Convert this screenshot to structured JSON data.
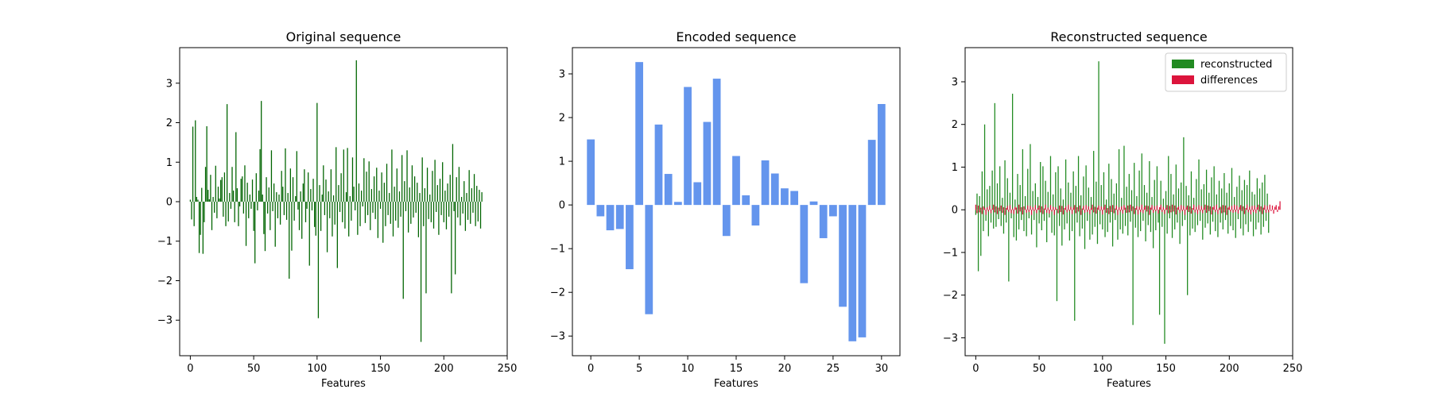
{
  "colors": {
    "original": "#006400",
    "encoded": "#6495ED",
    "reconstructed": "#228B22",
    "differences": "#DC143C"
  },
  "chart_data": [
    {
      "type": "bar",
      "title": "Original sequence",
      "xlabel": "Features",
      "ylabel": "",
      "xlim": [
        -8.4,
        250
      ],
      "ylim": [
        -3.9,
        3.9
      ],
      "x_ticks": [
        0,
        50,
        100,
        150,
        200,
        250
      ],
      "y_ticks": [
        -3,
        -2,
        -1,
        0,
        1,
        2,
        3
      ],
      "x": "0..239 (one bar per feature)",
      "series": [
        {
          "values": [
            0.05,
            -0.45,
            1.9,
            -0.62,
            2.06,
            0.12,
            0.05,
            -1.3,
            -0.84,
            0.35,
            -1.32,
            -0.52,
            0.88,
            1.91,
            0.3,
            0.06,
            0.68,
            -0.72,
            0.12,
            -0.28,
            0.91,
            -0.42,
            0.38,
            0.08,
            0.55,
            0.62,
            -0.38,
            0.74,
            -0.62,
            2.47,
            -0.5,
            0.22,
            -0.18,
            0.88,
            0.28,
            -0.52,
            1.76,
            0.34,
            -0.62,
            -0.12,
            0.58,
            0.64,
            -0.3,
            0.92,
            -1.12,
            0.48,
            -0.42,
            0.18,
            -0.18,
            0.56,
            -0.74,
            -1.56,
            0.72,
            -0.22,
            0.28,
            1.33,
            2.55,
            0.18,
            -0.82,
            -1.25,
            0.62,
            -0.3,
            0.36,
            -0.72,
            1.3,
            -0.24,
            0.46,
            -1.14,
            0.24,
            -0.42,
            0.18,
            -0.58,
            0.78,
            0.38,
            -0.34,
            1.35,
            -0.46,
            0.22,
            -1.95,
            0.84,
            -1.24,
            0.62,
            -0.48,
            0.14,
            1.28,
            -0.2,
            -0.72,
            0.26,
            -0.94,
            0.46,
            0.82,
            -0.52,
            -0.18,
            0.74,
            -1.62,
            0.32,
            -0.22,
            0.58,
            -0.64,
            -0.86,
            2.5,
            -2.95,
            0.42,
            -0.74,
            0.18,
            0.92,
            -0.34,
            0.56,
            -1.28,
            0.26,
            -0.42,
            0.82,
            -0.88,
            0.16,
            -0.58,
            1.38,
            -1.68,
            0.42,
            -0.26,
            0.72,
            -0.52,
            1.32,
            -0.68,
            0.24,
            1.36,
            -0.88,
            0.14,
            -0.48,
            1.12,
            0.38,
            -0.22,
            3.58,
            -0.84,
            0.46,
            -0.62,
            0.28,
            -0.12,
            1.1,
            -0.54,
            0.76,
            -0.34,
            1.02,
            -0.72,
            0.32,
            -0.28,
            0.64,
            -0.44,
            0.86,
            -0.92,
            0.28,
            -0.18,
            0.74,
            -1.04,
            0.48,
            -0.62,
            0.96,
            -0.34,
            0.22,
            -0.56,
            1.32,
            -0.88,
            0.38,
            -0.48,
            0.84,
            -0.66,
            0.26,
            -0.38,
            1.18,
            -2.46,
            0.52,
            -0.24,
            1.3,
            -0.78,
            0.36,
            -0.56,
            0.92,
            -0.4,
            0.64,
            -0.28,
            0.48,
            -0.9,
            0.22,
            -3.55,
            1.12,
            -0.62,
            0.34,
            -2.32,
            0.86,
            -0.44,
            0.18,
            -0.52,
            0.78,
            -0.68,
            1.06,
            -0.26,
            0.42,
            -0.84,
            0.58,
            -0.34,
            1.0,
            -0.52,
            0.28,
            -0.7,
            0.46,
            -0.38,
            0.68,
            -2.32,
            1.46,
            -0.24,
            -1.84,
            0.62,
            -0.4,
            0.88,
            -0.6,
            0.12,
            -0.3,
            0.52,
            -0.74,
            0.22,
            -0.46,
            0.8,
            -0.56,
            0.34,
            -0.28,
            0.7,
            -0.62,
            0.4,
            -0.5,
            0.3,
            -0.68,
            0.24
          ]
        }
      ]
    },
    {
      "type": "bar",
      "title": "Encoded sequence",
      "xlabel": "Features",
      "ylabel": "",
      "xlim": [
        -1.9,
        31.9
      ],
      "ylim": [
        -3.45,
        3.6
      ],
      "x_ticks": [
        0,
        5,
        10,
        15,
        20,
        25,
        30
      ],
      "y_ticks": [
        -3,
        -2,
        -1,
        0,
        1,
        2,
        3
      ],
      "categories": [
        0,
        1,
        2,
        3,
        4,
        5,
        6,
        7,
        8,
        9,
        10,
        11,
        12,
        13,
        14,
        15,
        16,
        17,
        18,
        19,
        20,
        21,
        22,
        23,
        24,
        25,
        26,
        27,
        28,
        29,
        30
      ],
      "series": [
        {
          "values": [
            1.5,
            -0.26,
            -0.58,
            -0.55,
            -1.47,
            3.27,
            -2.5,
            1.84,
            0.71,
            0.07,
            2.7,
            0.52,
            1.9,
            2.89,
            -0.71,
            1.12,
            0.22,
            -0.47,
            1.02,
            0.72,
            0.38,
            0.32,
            -1.79,
            0.08,
            -0.76,
            -0.26,
            -2.33,
            -3.12,
            -3.03,
            1.49,
            2.31
          ]
        }
      ]
    },
    {
      "type": "bar",
      "title": "Reconstructed sequence",
      "xlabel": "Features",
      "ylabel": "",
      "xlim": [
        -8.4,
        250
      ],
      "ylim": [
        -3.42,
        3.8
      ],
      "x_ticks": [
        0,
        50,
        100,
        150,
        200,
        250
      ],
      "y_ticks": [
        -3,
        -2,
        -1,
        0,
        1,
        2,
        3
      ],
      "legend_position": "upper right",
      "series": [
        {
          "name": "reconstructed",
          "values": [
            -0.12,
            0.38,
            -1.44,
            0.32,
            -1.08,
            0.9,
            -0.5,
            2.0,
            -0.26,
            0.48,
            -0.62,
            0.56,
            -0.3,
            0.92,
            -0.44,
            2.5,
            -0.4,
            0.62,
            -0.22,
            1.02,
            -0.38,
            0.28,
            -0.56,
            1.16,
            -0.3,
            0.74,
            -1.68,
            0.4,
            -0.2,
            2.72,
            -0.64,
            0.24,
            -0.72,
            0.84,
            -0.46,
            0.58,
            -0.24,
            1.42,
            -0.5,
            0.32,
            -0.62,
            0.96,
            -0.2,
            1.54,
            -0.58,
            0.44,
            -0.24,
            0.62,
            -0.88,
            0.3,
            -0.32,
            1.12,
            -0.48,
            1.02,
            -0.26,
            0.68,
            -0.76,
            0.42,
            -0.18,
            1.26,
            -0.54,
            0.36,
            -0.6,
            0.88,
            -2.14,
            1.02,
            -0.38,
            0.5,
            -0.84,
            0.24,
            -0.46,
            1.18,
            -0.32,
            0.64,
            -0.72,
            0.4,
            -0.5,
            0.9,
            -2.6,
            0.56,
            -0.3,
            1.26,
            -0.62,
            0.34,
            -0.44,
            0.78,
            -0.92,
            1.04,
            -0.26,
            0.52,
            -0.7,
            0.3,
            -0.58,
            1.38,
            -0.4,
            0.66,
            -0.8,
            3.48,
            -0.34,
            0.58,
            -0.46,
            0.88,
            -0.64,
            0.24,
            -0.52,
            1.08,
            -0.3,
            0.72,
            -0.86,
            0.38,
            -0.24,
            0.62,
            -0.7,
            1.42,
            -0.46,
            0.28,
            -0.56,
            1.5,
            -0.38,
            0.54,
            -0.6,
            0.84,
            -0.28,
            0.46,
            -2.7,
            1.1,
            -0.42,
            0.32,
            -0.64,
            0.92,
            -0.5,
            1.32,
            -0.26,
            0.58,
            -0.74,
            0.4,
            -0.36,
            1.14,
            -0.52,
            0.3,
            -0.9,
            0.7,
            -0.48,
            1.02,
            -0.3,
            -2.46,
            0.68,
            -0.4,
            0.26,
            -3.14,
            0.44,
            -0.56,
            1.26,
            -0.2,
            0.84,
            -0.66,
            0.36,
            -0.46,
            1.06,
            -0.3,
            0.5,
            -0.8,
            0.64,
            -0.38,
            1.7,
            -0.24,
            0.56,
            -2.0,
            0.34,
            -0.6,
            0.9,
            -0.44,
            0.28,
            -0.52,
            0.72,
            -0.36,
            1.18,
            -0.26,
            0.48,
            -0.7,
            0.6,
            -0.42,
            0.94,
            -0.32,
            0.4,
            -0.58,
            0.76,
            -0.28,
            1.02,
            -0.5,
            0.36,
            -0.64,
            0.68,
            -0.3,
            0.5,
            -0.46,
            0.86,
            -0.24,
            0.4,
            -0.56,
            0.62,
            -0.38,
            0.98,
            -0.48,
            0.3,
            -0.66,
            0.54,
            -0.22,
            0.8,
            -0.44,
            0.46,
            -0.6,
            0.7,
            -0.34,
            0.58,
            -0.52,
            0.92,
            -0.28,
            0.42,
            -0.62,
            0.36,
            -0.46,
            0.74,
            -0.3,
            0.5,
            -0.58,
            0.64,
            -0.4,
            0.82,
            -0.26,
            0.38,
            -0.54
          ]
        },
        {
          "name": "differences",
          "values": [
            0.12,
            -0.08,
            0.1,
            -0.06,
            0.05,
            -0.1,
            0.08,
            0.04,
            -0.12,
            0.06,
            -0.04,
            0.1,
            -0.08,
            0.03,
            0.12,
            -0.06,
            0.08,
            -0.1,
            0.05,
            -0.03,
            0.1,
            -0.07,
            0.06,
            -0.12,
            0.04,
            0.09,
            -0.05,
            0.11,
            -0.08,
            0.03,
            -0.1,
            0.07,
            0.05,
            -0.09,
            0.12,
            -0.04,
            0.06,
            -0.11,
            0.08,
            0.02,
            -0.07,
            0.1,
            -0.05,
            0.09,
            -0.12,
            0.06,
            -0.03,
            0.11,
            -0.08,
            0.04,
            0.1,
            -0.06,
            0.08,
            -0.1,
            0.03,
            0.12,
            -0.07,
            0.05,
            -0.09,
            0.11,
            -0.04,
            0.07,
            -0.12,
            0.06,
            0.02,
            -0.08,
            0.1,
            -0.05,
            0.09,
            -0.11,
            0.04,
            0.08,
            -0.06,
            0.12,
            -0.03,
            0.07,
            -0.1,
            0.05,
            0.11,
            -0.08,
            0.06,
            -0.04,
            0.1,
            -0.12,
            0.03,
            0.09,
            -0.07,
            0.11,
            -0.05,
            0.08,
            -0.1,
            0.04,
            0.12,
            -0.06,
            0.07,
            -0.09,
            0.05,
            0.1,
            -0.03,
            0.08,
            -0.11,
            0.06,
            0.12,
            -0.07,
            0.04,
            -0.1,
            0.09,
            -0.05,
            0.11,
            -0.08,
            0.03,
            0.1,
            -0.12,
            0.06,
            -0.04,
            0.08,
            -0.09,
            0.11,
            0.05,
            -0.07,
            0.1,
            -0.06,
            0.12,
            -0.03,
            0.08,
            -0.1,
            0.04,
            0.09,
            -0.11,
            0.07,
            -0.05,
            0.12,
            -0.08,
            0.06,
            0.1,
            -0.04,
            0.09,
            -0.12,
            0.05,
            0.11,
            -0.07,
            0.08,
            -0.03,
            0.1,
            -0.09,
            0.06,
            0.12,
            -0.05,
            0.07,
            -0.1,
            0.04,
            0.11,
            -0.08,
            0.09,
            -0.06,
            0.12,
            -0.04,
            0.1,
            -0.11,
            0.05,
            0.08,
            -0.07,
            0.11,
            -0.03,
            0.09,
            -0.12,
            0.06,
            0.1,
            -0.05,
            0.08,
            -0.09,
            0.04,
            0.12,
            -0.06,
            0.07,
            -0.1,
            0.11,
            -0.04,
            0.09,
            -0.08,
            0.05,
            0.12,
            -0.07,
            0.1,
            -0.03,
            0.08,
            -0.11,
            0.06,
            0.09,
            -0.05,
            0.12,
            -0.1,
            0.04,
            0.07,
            -0.08,
            0.11,
            -0.06,
            0.1,
            -0.12,
            0.05,
            0.08,
            -0.04,
            0.09,
            -0.07,
            0.12,
            -0.05,
            0.1,
            -0.09,
            0.06,
            0.11,
            -0.03,
            0.08,
            -0.1,
            0.04,
            0.12,
            -0.06,
            0.07,
            -0.11,
            0.09,
            -0.05,
            0.1,
            -0.08,
            0.06,
            0.12,
            -0.04,
            0.08,
            -0.1,
            0.05,
            0.11,
            -0.07,
            0.09,
            -0.06,
            0.12,
            -0.03,
            0.1,
            -0.09,
            0.07,
            0.11,
            -0.05,
            0.08,
            0.2
          ]
        }
      ]
    }
  ]
}
